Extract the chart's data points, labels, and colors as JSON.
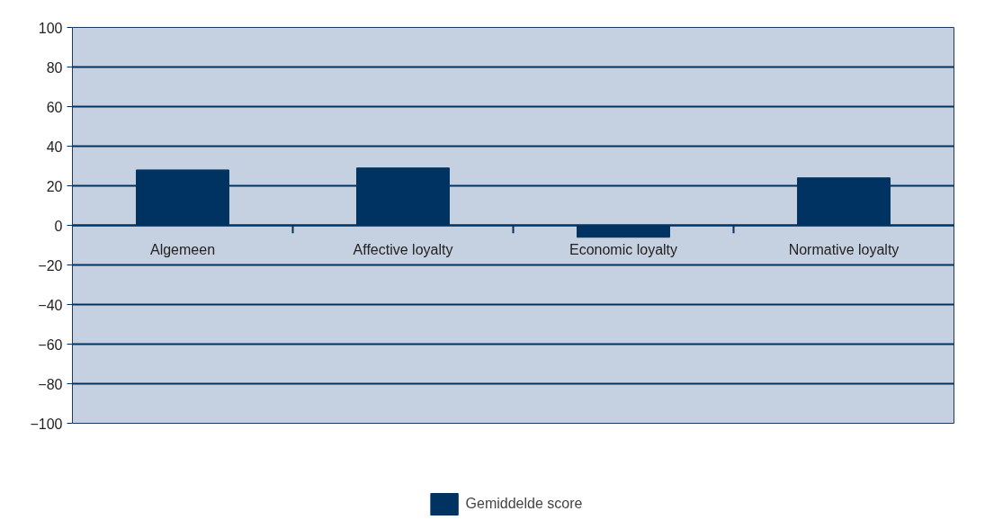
{
  "chart_data": {
    "type": "bar",
    "categories": [
      "Algemeen",
      "Affective loyalty",
      "Economic loyalty",
      "Normative loyalty"
    ],
    "series": [
      {
        "name": "Gemiddelde score",
        "color": "#003361",
        "values": [
          28,
          29,
          -6,
          24
        ]
      }
    ],
    "ylim": [
      -100,
      100
    ],
    "yticks": [
      -100,
      -80,
      -60,
      -40,
      -20,
      0,
      20,
      40,
      60,
      80,
      100
    ],
    "grid": "y",
    "legend": "bottom"
  }
}
